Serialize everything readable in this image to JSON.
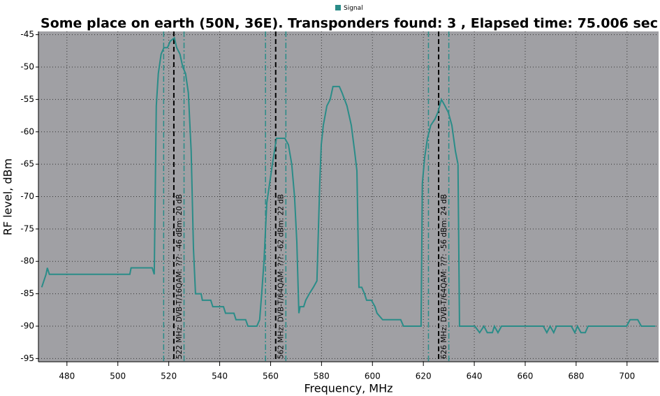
{
  "chart_data": {
    "type": "line",
    "title": "Some place on earth (50N, 36E). Transponders found: 3 , Elapsed time: 75.006 sec",
    "x_label": "Frequency, MHz",
    "y_label": "RF level, dBm",
    "xlim": [
      468.8,
      712.4
    ],
    "ylim": [
      -95.5,
      -44.5
    ],
    "xticks": [
      480,
      500,
      520,
      540,
      560,
      580,
      600,
      620,
      640,
      660,
      680,
      700
    ],
    "yticks": [
      -45,
      -50,
      -55,
      -60,
      -65,
      -70,
      -75,
      -80,
      -85,
      -90,
      -95
    ],
    "grid": true,
    "legend": "top",
    "x": [
      470.1,
      471.8,
      472.3,
      473.1,
      504.7,
      505.2,
      513.5,
      514.3,
      515.1,
      515.9,
      517.0,
      518.1,
      519.5,
      520.6,
      522.2,
      523.1,
      524.4,
      525.5,
      526.6,
      527.7,
      528.8,
      529.7,
      530.5,
      532.7,
      533.2,
      536.5,
      537.3,
      541.5,
      542.3,
      545.6,
      546.4,
      550.2,
      551.1,
      554.6,
      555.7,
      556.5,
      557.4,
      558.5,
      559.6,
      560.7,
      562.3,
      565.6,
      567.0,
      568.3,
      569.4,
      570.3,
      571.1,
      571.6,
      573.0,
      573.8,
      575.2,
      576.8,
      578.2,
      579.3,
      579.9,
      580.7,
      582.1,
      583.4,
      584.5,
      587.0,
      588.1,
      590.0,
      591.7,
      593.0,
      593.9,
      594.7,
      595.8,
      596.9,
      597.7,
      599.6,
      601.0,
      601.8,
      604.0,
      611.1,
      612.2,
      619.1,
      619.6,
      620.5,
      621.6,
      622.9,
      624.6,
      625.7,
      627.1,
      628.5,
      629.8,
      631.2,
      632.6,
      633.6,
      634.2,
      640.2,
      642.1,
      643.8,
      645.1,
      647.1,
      647.9,
      649.3,
      650.7,
      667.1,
      668.5,
      669.8,
      671.2,
      672.3,
      678.1,
      679.5,
      680.5,
      681.9,
      683.6,
      684.7,
      699.8,
      701.2,
      704.2,
      705.6,
      711.1
    ],
    "series": [
      {
        "name": "Signal",
        "color": "#2a8c88",
        "values": [
          -84,
          -82,
          -81,
          -82,
          -82,
          -81,
          -81,
          -82,
          -56,
          -51,
          -48,
          -47,
          -47,
          -46,
          -45.5,
          -47,
          -48,
          -50,
          -51,
          -54,
          -63,
          -78,
          -85,
          -85,
          -86,
          -86,
          -87,
          -87,
          -88,
          -88,
          -89,
          -89,
          -90,
          -90,
          -89,
          -85,
          -80,
          -71,
          -68,
          -65,
          -61,
          -61,
          -62,
          -65,
          -70,
          -77,
          -88,
          -87,
          -87,
          -86,
          -85,
          -84,
          -83,
          -68,
          -62,
          -59,
          -56,
          -55,
          -53,
          -53,
          -54,
          -56,
          -59,
          -63,
          -66,
          -84,
          -84,
          -85,
          -86,
          -86,
          -87,
          -88,
          -89,
          -89,
          -90,
          -90,
          -68,
          -64,
          -61,
          -59,
          -58,
          -57,
          -55,
          -56,
          -57,
          -59,
          -63,
          -65,
          -90,
          -90,
          -91,
          -90,
          -91,
          -91,
          -90,
          -91,
          -90,
          -90,
          -91,
          -90,
          -91,
          -90,
          -90,
          -91,
          -90,
          -91,
          -91,
          -90,
          -90,
          -89,
          -89,
          -90,
          -90
        ]
      }
    ],
    "markers": [
      {
        "freq": 522,
        "band": [
          518,
          526
        ],
        "label": "522 MHz: DVB-T/16QAM: ?/?: -46 dBm: 20 dB"
      },
      {
        "freq": 562,
        "band": [
          558,
          566
        ],
        "label": "562 MHz: DVB-T/64QAM: ?/?: -62 dBm: 22 dB"
      },
      {
        "freq": 626,
        "band": [
          622,
          630
        ],
        "label": "626 MHz: DVB-T/64QAM: ?/?: -56 dBm: 24 dB"
      }
    ]
  }
}
